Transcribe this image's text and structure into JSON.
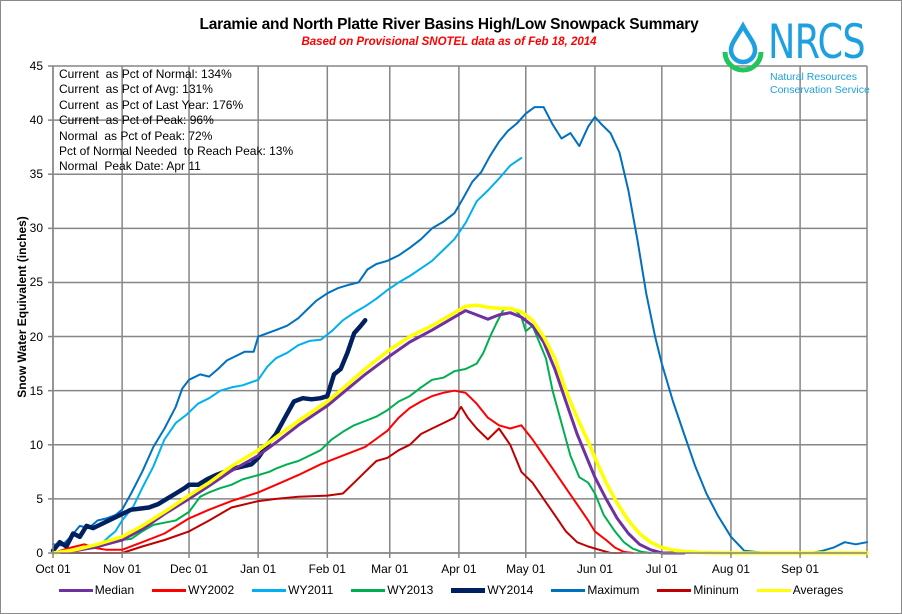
{
  "chart_data": {
    "type": "line",
    "title": "Laramie and North Platte River Basins High/Low Snowpack Summary",
    "subtitle": "Based on Provisional SNOTEL data as of Feb 18, 2014",
    "xlabel": "",
    "ylabel": "Snow Water Equivalent (inches)",
    "x_unit": "day of water year (Oct 01 = 0)",
    "xlim": [
      0,
      365
    ],
    "ylim": [
      0,
      45
    ],
    "grid": true,
    "legend_position": "bottom",
    "x_ticks": [
      {
        "day": 0,
        "label": "Oct 01"
      },
      {
        "day": 31,
        "label": "Nov 01"
      },
      {
        "day": 61,
        "label": "Dec 01"
      },
      {
        "day": 92,
        "label": "Jan 01"
      },
      {
        "day": 123,
        "label": "Feb 01"
      },
      {
        "day": 151,
        "label": "Mar 01"
      },
      {
        "day": 182,
        "label": "Apr 01"
      },
      {
        "day": 212,
        "label": "May 01"
      },
      {
        "day": 243,
        "label": "Jun 01"
      },
      {
        "day": 273,
        "label": "Jul 01"
      },
      {
        "day": 304,
        "label": "Aug 01"
      },
      {
        "day": 335,
        "label": "Sep 01"
      }
    ],
    "y_ticks": [
      0,
      5,
      10,
      15,
      20,
      25,
      30,
      35,
      40,
      45
    ],
    "series": [
      {
        "name": "Maximum",
        "color": "#0070c0",
        "width": 2,
        "x": [
          0,
          4,
          8,
          12,
          16,
          20,
          24,
          28,
          31,
          35,
          40,
          45,
          50,
          55,
          58,
          61,
          66,
          70,
          74,
          78,
          82,
          86,
          90,
          92,
          96,
          100,
          105,
          110,
          114,
          118,
          123,
          128,
          133,
          137,
          141,
          145,
          150,
          155,
          160,
          165,
          170,
          175,
          180,
          184,
          188,
          192,
          196,
          200,
          204,
          208,
          212,
          216,
          220,
          224,
          228,
          232,
          236,
          240,
          243,
          246,
          250,
          254,
          258,
          262,
          266,
          270,
          273,
          278,
          283,
          288,
          293,
          298,
          304,
          310,
          320,
          330,
          340,
          345,
          350,
          355,
          360,
          365
        ],
        "y": [
          0.8,
          0.7,
          1.5,
          2.5,
          2.3,
          3.0,
          3.2,
          3.5,
          4.0,
          5.5,
          7.5,
          9.8,
          11.5,
          13.5,
          15.2,
          16.0,
          16.5,
          16.3,
          17.0,
          17.8,
          18.2,
          18.6,
          18.6,
          20.0,
          20.3,
          20.6,
          21.0,
          21.7,
          22.5,
          23.3,
          24.0,
          24.5,
          24.8,
          25.0,
          26.2,
          26.7,
          27.0,
          27.5,
          28.2,
          29.0,
          30.0,
          30.6,
          31.4,
          32.8,
          34.3,
          35.2,
          36.7,
          38.0,
          39.0,
          39.7,
          40.6,
          41.2,
          41.2,
          39.6,
          38.3,
          38.8,
          37.6,
          39.4,
          40.3,
          39.6,
          38.8,
          37.0,
          33.5,
          29.0,
          24.0,
          20.0,
          17.5,
          14.0,
          11.0,
          8.0,
          5.5,
          3.5,
          1.5,
          0.2,
          0,
          0,
          0,
          0.2,
          0.5,
          1.0,
          0.8,
          1.0
        ]
      },
      {
        "name": "WY2011",
        "color": "#00b0f0",
        "width": 2,
        "x": [
          0,
          5,
          10,
          15,
          20,
          25,
          28,
          31,
          36,
          40,
          45,
          50,
          55,
          60,
          65,
          70,
          75,
          80,
          85,
          92,
          96,
          100,
          105,
          110,
          115,
          120,
          125,
          130,
          135,
          140,
          145,
          150,
          155,
          160,
          165,
          170,
          175,
          180,
          185,
          190,
          195,
          200,
          205,
          210
        ],
        "y": [
          0.0,
          0.1,
          0.2,
          0.4,
          0.5,
          1.5,
          2.0,
          3.0,
          4.3,
          6.0,
          8.0,
          10.5,
          12.0,
          12.8,
          13.8,
          14.3,
          15.0,
          15.3,
          15.5,
          16.0,
          17.2,
          18.0,
          18.5,
          19.2,
          19.6,
          19.7,
          20.5,
          21.5,
          22.2,
          22.8,
          23.5,
          24.3,
          25.0,
          25.6,
          26.3,
          27.0,
          28.0,
          29.0,
          30.5,
          32.5,
          33.5,
          34.6,
          35.8,
          36.5
        ]
      },
      {
        "name": "WY2014",
        "color": "#002060",
        "width": 4.5,
        "x": [
          0,
          3,
          6,
          9,
          12,
          15,
          18,
          21,
          24,
          27,
          31,
          35,
          39,
          43,
          47,
          51,
          55,
          59,
          61,
          65,
          69,
          73,
          77,
          81,
          85,
          89,
          92,
          96,
          100,
          104,
          108,
          112,
          116,
          120,
          123,
          126,
          129,
          132,
          135,
          138,
          140
        ],
        "y": [
          0.2,
          1.0,
          0.6,
          1.8,
          1.5,
          2.5,
          2.3,
          2.6,
          2.9,
          3.2,
          3.6,
          4.0,
          4.1,
          4.2,
          4.5,
          5.0,
          5.5,
          6.0,
          6.3,
          6.3,
          6.8,
          7.2,
          7.5,
          7.8,
          8.0,
          8.2,
          8.8,
          10.0,
          11.0,
          12.5,
          14.0,
          14.3,
          14.2,
          14.3,
          14.5,
          16.5,
          17.0,
          18.5,
          20.3,
          21.0,
          21.5
        ]
      },
      {
        "name": "WY2013",
        "color": "#00b050",
        "width": 2,
        "x": [
          0,
          10,
          20,
          28,
          31,
          35,
          40,
          45,
          50,
          55,
          61,
          66,
          70,
          75,
          80,
          85,
          92,
          97,
          100,
          105,
          110,
          115,
          120,
          125,
          130,
          135,
          140,
          145,
          150,
          155,
          160,
          165,
          170,
          175,
          180,
          185,
          190,
          193,
          196,
          199,
          202,
          205,
          208,
          210,
          212,
          215,
          218,
          221,
          224,
          228,
          232,
          236,
          240,
          243,
          247,
          252,
          256,
          260,
          264,
          268
        ],
        "y": [
          0.0,
          0.2,
          0.5,
          1.2,
          1.2,
          1.3,
          2.0,
          2.6,
          2.8,
          3.0,
          3.8,
          5.2,
          5.6,
          6.0,
          6.3,
          6.8,
          7.2,
          7.5,
          7.8,
          8.2,
          8.5,
          9.0,
          9.5,
          10.5,
          11.2,
          11.8,
          12.2,
          12.6,
          13.2,
          14.0,
          14.5,
          15.3,
          16.0,
          16.2,
          16.8,
          17.0,
          17.5,
          18.5,
          20.0,
          21.3,
          22.5,
          22.6,
          22.3,
          21.8,
          20.5,
          21.0,
          19.5,
          18.0,
          15.0,
          12.0,
          9.0,
          7.0,
          6.5,
          5.5,
          3.5,
          2.0,
          1.0,
          0.4,
          0.1,
          0.0
        ]
      },
      {
        "name": "WY2002",
        "color": "#ff0000",
        "width": 2,
        "x": [
          0,
          8,
          14,
          18,
          24,
          31,
          40,
          50,
          61,
          70,
          80,
          92,
          100,
          110,
          120,
          130,
          140,
          150,
          155,
          160,
          165,
          170,
          175,
          180,
          185,
          190,
          195,
          200,
          205,
          210,
          215,
          220,
          225,
          230,
          235,
          240,
          243,
          248,
          252,
          256,
          260
        ],
        "y": [
          0.0,
          0.5,
          0.8,
          0.5,
          0.3,
          0.3,
          1.0,
          1.8,
          3.2,
          4.0,
          4.8,
          5.6,
          6.3,
          7.2,
          8.2,
          9.0,
          9.8,
          11.3,
          12.5,
          13.4,
          14.0,
          14.5,
          14.8,
          15.0,
          14.8,
          13.8,
          12.5,
          11.8,
          11.5,
          11.8,
          10.5,
          9.0,
          7.5,
          6.0,
          4.5,
          3.0,
          2.0,
          1.2,
          0.5,
          0.1,
          0.0
        ]
      },
      {
        "name": "Mininum",
        "color": "#c00000",
        "width": 2,
        "x": [
          0,
          10,
          20,
          31,
          40,
          50,
          61,
          70,
          80,
          92,
          100,
          110,
          123,
          130,
          135,
          140,
          145,
          150,
          155,
          160,
          165,
          170,
          175,
          180,
          183,
          186,
          190,
          195,
          200,
          205,
          210,
          215,
          220,
          225,
          230,
          235,
          240,
          245,
          250,
          255
        ],
        "y": [
          0.0,
          0.0,
          0.0,
          0.0,
          0.6,
          1.2,
          2.0,
          3.0,
          4.2,
          4.8,
          5.0,
          5.2,
          5.3,
          5.5,
          6.5,
          7.5,
          8.5,
          8.8,
          9.5,
          10.0,
          11.0,
          11.5,
          12.0,
          12.5,
          13.5,
          12.5,
          11.5,
          10.5,
          11.5,
          10.0,
          7.5,
          6.5,
          5.0,
          3.5,
          2.0,
          1.0,
          0.6,
          0.3,
          0.0,
          0.0
        ]
      },
      {
        "name": "Median",
        "color": "#7030a0",
        "width": 3,
        "x": [
          0,
          10,
          20,
          31,
          40,
          50,
          61,
          70,
          80,
          92,
          100,
          110,
          123,
          130,
          140,
          151,
          160,
          170,
          180,
          185,
          190,
          195,
          200,
          205,
          210,
          215,
          220,
          225,
          230,
          235,
          240,
          243,
          248,
          253,
          258,
          263,
          268,
          273,
          278,
          283
        ],
        "y": [
          0.0,
          0.2,
          0.6,
          1.2,
          2.2,
          3.6,
          5.0,
          6.2,
          7.6,
          9.0,
          10.2,
          11.8,
          13.6,
          14.8,
          16.5,
          18.2,
          19.5,
          20.6,
          21.8,
          22.4,
          22.0,
          21.6,
          22.0,
          22.2,
          21.8,
          21.0,
          19.5,
          17.0,
          14.0,
          11.0,
          8.5,
          7.0,
          5.0,
          3.2,
          1.8,
          0.8,
          0.3,
          0.0,
          0.0,
          0.0
        ]
      },
      {
        "name": "Averages",
        "color": "#ffff00",
        "width": 3.5,
        "x": [
          0,
          10,
          20,
          31,
          40,
          50,
          61,
          70,
          80,
          92,
          100,
          110,
          123,
          130,
          140,
          151,
          160,
          170,
          180,
          185,
          190,
          195,
          200,
          205,
          210,
          215,
          220,
          225,
          230,
          235,
          240,
          243,
          248,
          253,
          258,
          263,
          268,
          273,
          280,
          290,
          300,
          304,
          320,
          335,
          350,
          365
        ],
        "y": [
          0.0,
          0.3,
          0.8,
          1.5,
          2.5,
          3.8,
          5.3,
          6.5,
          8.0,
          9.5,
          10.7,
          12.2,
          14.0,
          15.2,
          17.0,
          18.8,
          20.0,
          21.0,
          22.2,
          22.8,
          22.9,
          22.7,
          22.6,
          22.6,
          22.3,
          21.5,
          20.0,
          18.0,
          15.0,
          12.5,
          10.3,
          8.8,
          6.5,
          4.6,
          3.0,
          1.8,
          1.0,
          0.5,
          0.2,
          0.05,
          0.0,
          0.0,
          0.0,
          0.0,
          0.0,
          0.0
        ]
      }
    ]
  },
  "stats": [
    "Current  as Pct of Normal: 134%",
    "Current  as Pct of Avg: 131%",
    "Current  as Pct of Last Year: 176%",
    "Current  as Pct of Peak: 96%",
    "Normal  as Pct of Peak: 72%",
    "Pct of Normal Needed  to Reach Peak: 13%",
    "Normal  Peak Date: Apr 11"
  ],
  "logo": {
    "name": "NRCS",
    "line1": "Natural Resources",
    "line2": "Conservation Service",
    "icon": "water-drop-icon",
    "blue": "#1ea0e0",
    "green": "#22c55e"
  },
  "legend": [
    {
      "label": "Median",
      "color": "#7030a0"
    },
    {
      "label": "WY2002",
      "color": "#ff0000"
    },
    {
      "label": "WY2011",
      "color": "#00b0f0"
    },
    {
      "label": "WY2013",
      "color": "#00b050"
    },
    {
      "label": "WY2014",
      "color": "#002060"
    },
    {
      "label": "Maximum",
      "color": "#0070c0"
    },
    {
      "label": "Mininum",
      "color": "#c00000"
    },
    {
      "label": "Averages",
      "color": "#ffff00"
    }
  ]
}
